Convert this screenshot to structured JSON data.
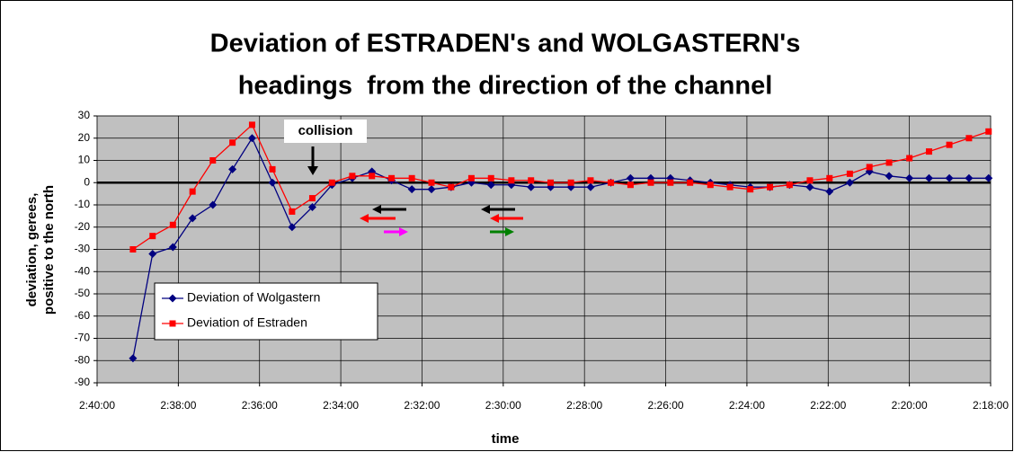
{
  "chart_data": {
    "type": "line",
    "title": [
      "Deviation of ESTRADEN's and WOLGASTERN's",
      "headings  from the direction of the channel"
    ],
    "xlabel": "time",
    "ylabel": [
      "deviation, gerees,",
      "positive to the north"
    ],
    "annotation": "collision",
    "x": [
      2347,
      2318,
      2288,
      2259,
      2229,
      2200,
      2171,
      2141,
      2112,
      2082,
      2053,
      2023,
      1994,
      1965,
      1935,
      1906,
      1877,
      1847,
      1818,
      1788,
      1759,
      1730,
      1700,
      1671,
      1641,
      1612,
      1582,
      1553,
      1524,
      1494,
      1465,
      1435,
      1406,
      1377,
      1347,
      1318,
      1288,
      1259,
      1230,
      1200,
      1171,
      1141,
      1112,
      1083
    ],
    "series": [
      {
        "name": "Deviation of Wolgastern",
        "color": "#000080",
        "marker": "diamond",
        "values": [
          -79,
          -32,
          -29,
          -16,
          -10,
          6,
          20,
          0,
          -20,
          -11,
          -1,
          2,
          5,
          1,
          -3,
          -3,
          -2,
          0,
          -1,
          -1,
          -2,
          -2,
          -2,
          -2,
          0,
          2,
          2,
          2,
          1,
          0,
          -1,
          -2,
          -2,
          -1,
          -2,
          -4,
          0,
          5,
          3,
          2,
          2,
          2,
          2,
          2
        ]
      },
      {
        "name": "Deviation of Estraden",
        "color": "#ff0000",
        "marker": "square",
        "values": [
          -30,
          -24,
          -19,
          -4,
          10,
          18,
          26,
          6,
          -13,
          -7,
          0,
          3,
          3,
          2,
          2,
          0,
          -2,
          2,
          2,
          1,
          1,
          0,
          0,
          1,
          0,
          -1,
          0,
          0,
          0,
          -1,
          -2,
          -3,
          -2,
          -1,
          1,
          2,
          4,
          7,
          9,
          11,
          14,
          17,
          20,
          23
        ]
      }
    ],
    "xlim": [
      2400,
      1080
    ],
    "xticks": [
      {
        "value": 2400,
        "label": "2:40:00"
      },
      {
        "value": 2280,
        "label": "2:38:00"
      },
      {
        "value": 2160,
        "label": "2:36:00"
      },
      {
        "value": 2040,
        "label": "2:34:00"
      },
      {
        "value": 1920,
        "label": "2:32:00"
      },
      {
        "value": 1800,
        "label": "2:30:00"
      },
      {
        "value": 1680,
        "label": "2:28:00"
      },
      {
        "value": 1560,
        "label": "2:26:00"
      },
      {
        "value": 1440,
        "label": "2:24:00"
      },
      {
        "value": 1320,
        "label": "2:22:00"
      },
      {
        "value": 1200,
        "label": "2:20:00"
      },
      {
        "value": 1080,
        "label": "2:18:00"
      }
    ],
    "ylim": [
      -90,
      30
    ],
    "yticks": [
      30,
      20,
      10,
      0,
      -10,
      -20,
      -30,
      -40,
      -50,
      -60,
      -70,
      -80,
      -90
    ],
    "grid": true,
    "legend": "lower left"
  }
}
